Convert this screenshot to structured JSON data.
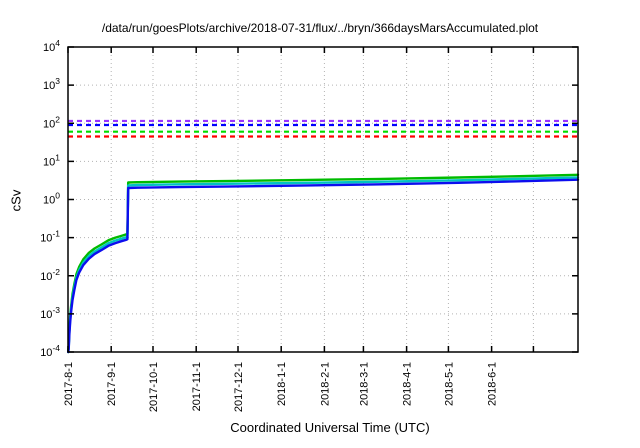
{
  "chart_data": {
    "type": "line",
    "title": "/data/run/goesPlots/archive/2018-07-31/flux/../bryn/366daysMarsAccumulated.plot",
    "xlabel": "Coordinated Universal Time (UTC)",
    "ylabel": "cSv",
    "y_scale": "log10",
    "ylim_exponents": [
      -4,
      4
    ],
    "y_tick_exponents": [
      4,
      3,
      2,
      1,
      0,
      -1,
      -2,
      -3,
      -4
    ],
    "x_range_days": [
      0,
      366
    ],
    "x_start_date": "2017-8-1",
    "grid": true,
    "legend": "none",
    "x_ticks": [
      {
        "label": "2017-8-1",
        "day": 0
      },
      {
        "label": "2017-9-1",
        "day": 31
      },
      {
        "label": "2017-10-1",
        "day": 61
      },
      {
        "label": "2017-11-1",
        "day": 92
      },
      {
        "label": "2017-12-1",
        "day": 122
      },
      {
        "label": "2018-1-1",
        "day": 153
      },
      {
        "label": "2018-2-1",
        "day": 184
      },
      {
        "label": "2018-3-1",
        "day": 212
      },
      {
        "label": "2018-4-1",
        "day": 243
      },
      {
        "label": "2018-5-1",
        "day": 273
      },
      {
        "label": "2018-6-1",
        "day": 304
      },
      {
        "label": "",
        "day": 334
      }
    ],
    "threshold_lines": [
      {
        "name": "limit-purple",
        "color": "#9933ff",
        "style": "dashed",
        "value": 115
      },
      {
        "name": "limit-blue",
        "color": "#0000ff",
        "style": "dashed",
        "value": 90
      },
      {
        "name": "limit-green",
        "color": "#00dd00",
        "style": "dashed",
        "value": 60
      },
      {
        "name": "limit-red",
        "color": "#ff0000",
        "style": "dashed",
        "value": 45
      }
    ],
    "series": [
      {
        "name": "accumulated-dose-green",
        "color": "#00bb00",
        "points": [
          [
            0.15,
            0.0001
          ],
          [
            0.5,
            0.00015
          ],
          [
            1,
            0.0004
          ],
          [
            1.6,
            0.0009
          ],
          [
            2.3,
            0.0017
          ],
          [
            3.2,
            0.0033
          ],
          [
            4.5,
            0.006
          ],
          [
            6,
            0.011
          ],
          [
            8,
            0.017
          ],
          [
            11,
            0.027
          ],
          [
            15,
            0.04
          ],
          [
            19,
            0.052
          ],
          [
            24,
            0.066
          ],
          [
            29,
            0.085
          ],
          [
            34,
            0.1
          ],
          [
            38,
            0.11
          ],
          [
            42,
            0.122
          ],
          [
            42.6,
            0.125
          ],
          [
            43.2,
            2.8
          ],
          [
            50,
            2.85
          ],
          [
            80,
            2.95
          ],
          [
            120,
            3.08
          ],
          [
            160,
            3.2
          ],
          [
            190,
            3.32
          ],
          [
            230,
            3.5
          ],
          [
            280,
            3.78
          ],
          [
            320,
            4.05
          ],
          [
            366,
            4.45
          ]
        ]
      },
      {
        "name": "accumulated-dose-cyan",
        "color": "#00c2c2",
        "points": [
          [
            0.15,
            0.0001
          ],
          [
            0.5,
            0.00013
          ],
          [
            1,
            0.00034
          ],
          [
            1.6,
            0.00075
          ],
          [
            2.3,
            0.0014
          ],
          [
            3.2,
            0.0027
          ],
          [
            4.5,
            0.005
          ],
          [
            6,
            0.009
          ],
          [
            8,
            0.014
          ],
          [
            11,
            0.022
          ],
          [
            15,
            0.033
          ],
          [
            19,
            0.043
          ],
          [
            24,
            0.055
          ],
          [
            29,
            0.071
          ],
          [
            34,
            0.084
          ],
          [
            38,
            0.093
          ],
          [
            42,
            0.103
          ],
          [
            42.6,
            0.106
          ],
          [
            43.2,
            2.35
          ],
          [
            50,
            2.4
          ],
          [
            80,
            2.5
          ],
          [
            120,
            2.6
          ],
          [
            160,
            2.7
          ],
          [
            190,
            2.8
          ],
          [
            230,
            2.95
          ],
          [
            280,
            3.18
          ],
          [
            320,
            3.45
          ],
          [
            366,
            3.8
          ]
        ]
      },
      {
        "name": "accumulated-dose-blue",
        "color": "#0d0dee",
        "points": [
          [
            0.15,
            0.0001
          ],
          [
            0.5,
            0.00012
          ],
          [
            1,
            0.0003
          ],
          [
            1.6,
            0.00062
          ],
          [
            2.3,
            0.0012
          ],
          [
            3.2,
            0.0023
          ],
          [
            4.5,
            0.0042
          ],
          [
            6,
            0.0078
          ],
          [
            8,
            0.012
          ],
          [
            11,
            0.019
          ],
          [
            15,
            0.028
          ],
          [
            19,
            0.037
          ],
          [
            24,
            0.047
          ],
          [
            29,
            0.061
          ],
          [
            34,
            0.072
          ],
          [
            38,
            0.08
          ],
          [
            42,
            0.088
          ],
          [
            42.6,
            0.091
          ],
          [
            43.2,
            2.0
          ],
          [
            50,
            2.04
          ],
          [
            80,
            2.12
          ],
          [
            120,
            2.2
          ],
          [
            160,
            2.3
          ],
          [
            190,
            2.38
          ],
          [
            230,
            2.52
          ],
          [
            280,
            2.75
          ],
          [
            320,
            2.98
          ],
          [
            366,
            3.3
          ]
        ]
      }
    ],
    "colors": {
      "grid": "#b3b3b3",
      "border": "#000000",
      "text": "#000000"
    }
  }
}
